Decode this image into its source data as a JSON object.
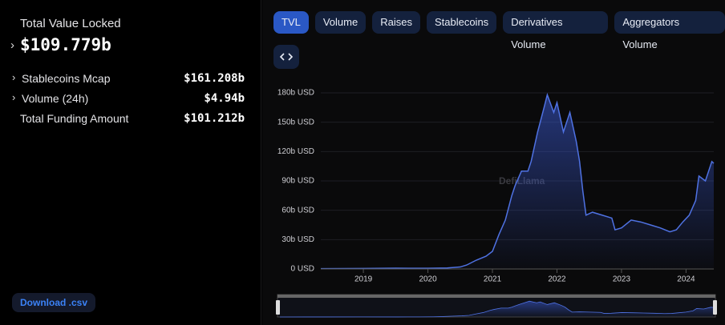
{
  "sidebar": {
    "title": "Total Value Locked",
    "total": "$109.779b",
    "rows": [
      {
        "label": "Stablecoins Mcap",
        "value": "$161.208b"
      },
      {
        "label": "Volume (24h)",
        "value": "$4.94b"
      },
      {
        "label": "Total Funding Amount",
        "value": "$101.212b"
      }
    ],
    "download": "Download .csv"
  },
  "tabs": [
    "TVL",
    "Volume",
    "Raises",
    "Stablecoins",
    "Derivatives Volume",
    "Aggregators Volume"
  ],
  "chart_data": {
    "type": "area",
    "watermark": "DefiLlama",
    "color": "#4f72e3",
    "x": [
      2018.34,
      2019.0,
      2019.5,
      2020.0,
      2020.3,
      2020.5,
      2020.6,
      2020.75,
      2020.9,
      2021.0,
      2021.1,
      2021.2,
      2021.3,
      2021.35,
      2021.45,
      2021.55,
      2021.6,
      2021.7,
      2021.8,
      2021.85,
      2021.95,
      2022.0,
      2022.1,
      2022.2,
      2022.3,
      2022.35,
      2022.4,
      2022.45,
      2022.55,
      2022.7,
      2022.85,
      2022.9,
      2023.0,
      2023.15,
      2023.3,
      2023.45,
      2023.6,
      2023.75,
      2023.85,
      2023.95,
      2024.05,
      2024.15,
      2024.2,
      2024.3,
      2024.4,
      2024.43
    ],
    "values": [
      0.3,
      0.5,
      0.8,
      0.7,
      1,
      2,
      4,
      9,
      13,
      18,
      35,
      50,
      75,
      85,
      100,
      100,
      110,
      140,
      165,
      178,
      160,
      170,
      140,
      160,
      130,
      110,
      80,
      55,
      58,
      55,
      52,
      40,
      42,
      50,
      48,
      45,
      42,
      38,
      40,
      48,
      55,
      70,
      95,
      90,
      109.8,
      108
    ],
    "xlim": [
      2018.34,
      2024.43
    ],
    "xticks": [
      2019,
      2020,
      2021,
      2022,
      2023,
      2024
    ],
    "ylim": [
      0,
      180
    ],
    "yticks": [
      {
        "value": 0,
        "label": "0 USD"
      },
      {
        "value": 30,
        "label": "30b USD"
      },
      {
        "value": 60,
        "label": "60b USD"
      },
      {
        "value": 90,
        "label": "90b USD"
      },
      {
        "value": 120,
        "label": "120b USD"
      },
      {
        "value": 150,
        "label": "150b USD"
      },
      {
        "value": 180,
        "label": "180b USD"
      }
    ],
    "grid": true
  }
}
